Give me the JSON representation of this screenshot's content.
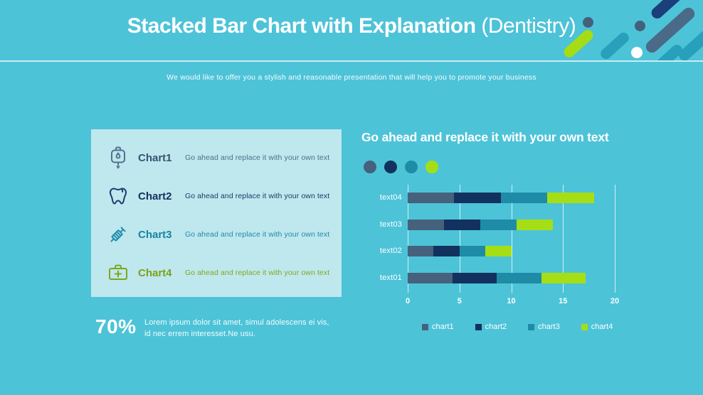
{
  "header": {
    "title_bold": "Stacked Bar Chart with Explanation ",
    "title_light": "(Dentistry)",
    "subtitle": "We would like to offer you a stylish and reasonable presentation that will help you to promote your business"
  },
  "decoration": {
    "colors": {
      "navy_capsule": "#1B3F7A",
      "slate_capsule": "#4A6A87",
      "teal_capsule": "#28A0BB",
      "lime_capsule": "#A6DC14",
      "slate_dot": "#44617B",
      "white_dot": "#FFFFFF"
    }
  },
  "explanation": {
    "items": [
      {
        "icon": "iv-bag-icon",
        "icon_color": "#53718E",
        "label": "Chart1",
        "label_color": "#37536E",
        "description": "Go ahead and replace it with your own text",
        "desc_color": "#4E6E88"
      },
      {
        "icon": "tooth-icon",
        "icon_color": "#1D3A6B",
        "label": "Chart2",
        "label_color": "#14305C",
        "description": "Go ahead and replace it with your own text",
        "desc_color": "#1D3A66"
      },
      {
        "icon": "syringe-icon",
        "icon_color": "#1F8DAB",
        "label": "Chart3",
        "label_color": "#1884A3",
        "description": "Go ahead and replace it with your own text",
        "desc_color": "#1F8BA9"
      },
      {
        "icon": "first-aid-kit-icon",
        "icon_color": "#7FA61C",
        "label": "Chart4",
        "label_color": "#7AA318",
        "description": "Go ahead and replace it with your own text",
        "desc_color": "#7FA81E"
      }
    ]
  },
  "right": {
    "heading": "Go ahead and replace it with your own text",
    "dot_colors": [
      "#46617C",
      "#12315F",
      "#1E8CA6",
      "#A5DE14"
    ]
  },
  "chart_data": {
    "type": "bar",
    "orientation": "horizontal",
    "stacked": true,
    "grid": true,
    "legend_position": "bottom",
    "xlim": [
      0,
      20
    ],
    "x_ticks": [
      "0",
      "5",
      "10",
      "15",
      "20"
    ],
    "series": [
      {
        "name": "chart1",
        "color": "#46617C"
      },
      {
        "name": "chart2",
        "color": "#12315F"
      },
      {
        "name": "chart3",
        "color": "#1E8CA6"
      },
      {
        "name": "chart4",
        "color": "#A5DE14"
      }
    ],
    "rows_top_to_bottom": [
      {
        "category": "text04",
        "values": [
          4.5,
          4.5,
          4.5,
          4.5
        ]
      },
      {
        "category": "text03",
        "values": [
          3.5,
          3.5,
          3.5,
          3.5
        ]
      },
      {
        "category": "text02",
        "values": [
          2.5,
          2.5,
          2.5,
          2.5
        ]
      },
      {
        "category": "text01",
        "values": [
          4.3,
          4.3,
          4.3,
          4.3
        ]
      }
    ]
  },
  "stats": {
    "percent": "70%",
    "text": "Lorem ipsum dolor sit amet, simul adolescens ei vis, id nec errem interesset.Ne usu."
  }
}
